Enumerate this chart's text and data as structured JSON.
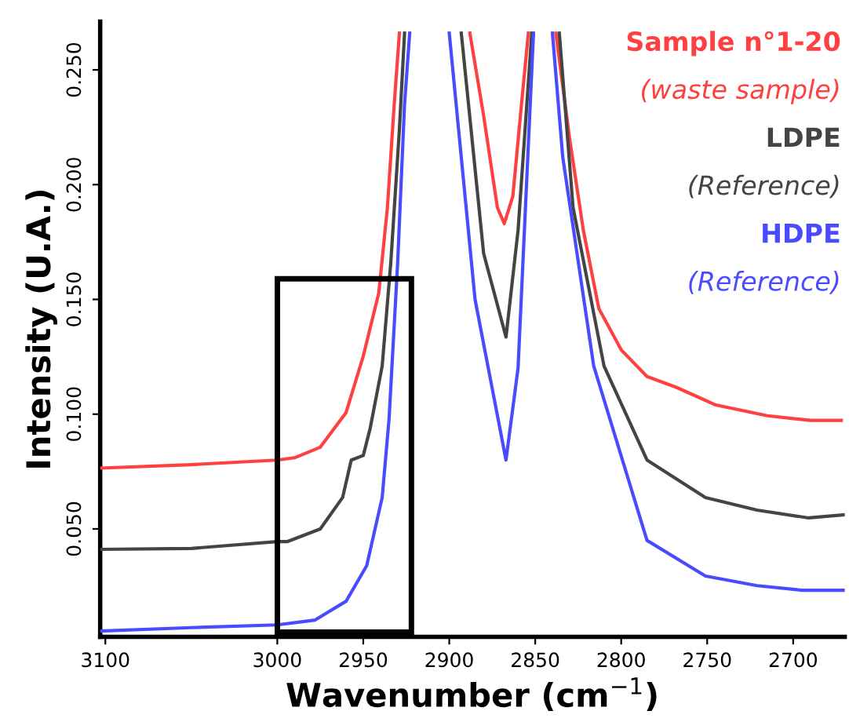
{
  "chart_data": {
    "type": "line",
    "xlabel": "Wavenumber (cm$^{−1}$)",
    "ylabel": "Intensity (U.A.)",
    "xlim": [
      3103,
      2670
    ],
    "ylim": [
      0.003,
      0.271
    ],
    "xticks": [
      3100,
      3000,
      2950,
      2900,
      2850,
      2800,
      2750,
      2700
    ],
    "yticks": [
      {
        "value": 0.05,
        "label": "0.050"
      },
      {
        "value": 0.1,
        "label": "0.100"
      },
      {
        "value": 0.15,
        "label": "0.150"
      },
      {
        "value": 0.2,
        "label": "0.200"
      },
      {
        "value": 0.25,
        "label": "0.250"
      }
    ],
    "grid": false,
    "legend": "top right",
    "marker": "none",
    "line_style": "solid",
    "series": [
      {
        "name": "Sample n°1-20\n(waste sample)",
        "color": "#ff4040",
        "x": [
          3103,
          3050,
          3000,
          2990,
          2975,
          2960,
          2950,
          2941,
          2936,
          2932,
          2929,
          2900,
          2888,
          2880,
          2872,
          2868,
          2863,
          2858,
          2854,
          2845,
          2838,
          2830,
          2822,
          2813,
          2800,
          2785,
          2768,
          2745,
          2715,
          2690,
          2672
        ],
        "values": [
          0.0765,
          0.078,
          0.08,
          0.081,
          0.0856,
          0.1007,
          0.1253,
          0.1527,
          0.1897,
          0.235,
          0.266,
          null,
          0.266,
          0.23,
          0.19,
          0.183,
          0.195,
          0.235,
          0.266,
          null,
          0.266,
          0.22,
          0.18,
          0.146,
          0.128,
          0.1164,
          0.1117,
          0.104,
          0.0993,
          0.0973,
          0.0973
        ]
      },
      {
        "name": "LDPE\n(Reference)",
        "color": "#444444",
        "x": [
          3103,
          3050,
          3000,
          2994,
          2975,
          2962,
          2957,
          2950,
          2946,
          2939,
          2934,
          2929,
          2926,
          2910,
          2893,
          2880,
          2867,
          2860,
          2852,
          2845,
          2836,
          2828,
          2810,
          2785,
          2751,
          2721,
          2691,
          2670
        ],
        "values": [
          0.0411,
          0.0415,
          0.0445,
          0.0445,
          0.05,
          0.0637,
          0.08,
          0.082,
          0.0938,
          0.121,
          0.166,
          0.224,
          0.266,
          null,
          0.266,
          0.17,
          0.1336,
          0.18,
          0.266,
          null,
          0.266,
          0.19,
          0.121,
          0.08,
          0.0637,
          0.0582,
          0.0548,
          0.0562
        ]
      },
      {
        "name": "HDPE\n(Reference)",
        "color": "#4a4aff",
        "x": [
          3103,
          3050,
          3000,
          2978,
          2960,
          2948,
          2939,
          2935,
          2930,
          2926,
          2923,
          2910,
          2900,
          2885,
          2867,
          2860,
          2851,
          2845,
          2840,
          2834,
          2816,
          2785,
          2751,
          2721,
          2695,
          2670
        ],
        "values": [
          0.0055,
          0.007,
          0.0082,
          0.0103,
          0.0185,
          0.034,
          0.0637,
          0.098,
          0.166,
          0.235,
          0.266,
          null,
          0.266,
          0.15,
          0.08,
          0.12,
          0.266,
          null,
          0.266,
          0.212,
          0.121,
          0.045,
          0.0295,
          0.0253,
          0.0233,
          0.0233
        ]
      }
    ]
  }
}
